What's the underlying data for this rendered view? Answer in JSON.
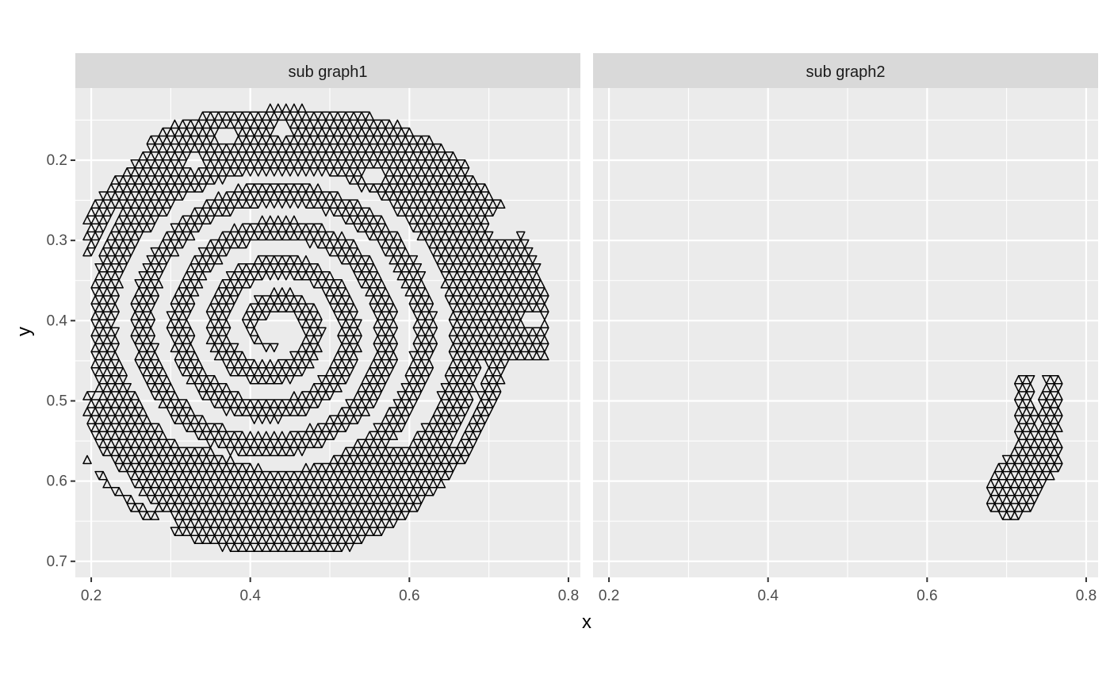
{
  "chart_data": {
    "type": "scatter",
    "geometry": "triangulated mesh (hexagonal lattice of triangles), facetted",
    "xlabel": "x",
    "ylabel": "y",
    "xlim": [
      0.18,
      0.815
    ],
    "ylim": [
      0.72,
      0.11
    ],
    "y_reversed": true,
    "x_ticks": [
      0.2,
      0.4,
      0.6,
      0.8
    ],
    "x_tick_labels": [
      "0.2",
      "0.4",
      "0.6",
      "0.8"
    ],
    "y_ticks": [
      0.2,
      0.3,
      0.4,
      0.5,
      0.6,
      0.7
    ],
    "y_tick_labels": [
      "0.2",
      "0.3",
      "0.4",
      "0.5",
      "0.6",
      "0.7"
    ],
    "grid": true,
    "panel_background": "#ebebeb",
    "strip_background": "#d9d9d9",
    "grid_color": "#ffffff",
    "mesh_color": "#000000",
    "mesh_spacing": 0.01,
    "facets": [
      {
        "label": "sub graph1",
        "region": "spiral",
        "spiral": {
          "center": [
            0.43,
            0.41
          ],
          "growth_per_turn": 0.045,
          "band_half_width": 0.012,
          "min_radius": 0.02,
          "max_radius": 0.28,
          "x_scale": 1.05
        },
        "outer_ring": {
          "center": [
            0.445,
            0.41
          ],
          "rx": [
            0.22,
            0.33
          ],
          "ry": [
            0.2,
            0.27
          ]
        },
        "holes": [
          {
            "x": 0.245,
            "y": 0.44,
            "r": 0.015
          },
          {
            "x": 0.33,
            "y": 0.205,
            "r": 0.012
          },
          {
            "x": 0.72,
            "y": 0.28,
            "r": 0.022
          },
          {
            "x": 0.555,
            "y": 0.22,
            "r": 0.012
          },
          {
            "x": 0.755,
            "y": 0.4,
            "r": 0.012
          },
          {
            "x": 0.295,
            "y": 0.645,
            "r": 0.01
          },
          {
            "x": 0.37,
            "y": 0.17,
            "r": 0.012
          },
          {
            "x": 0.44,
            "y": 0.165,
            "r": 0.012
          }
        ]
      },
      {
        "label": "sub graph2",
        "region": "y-shape",
        "segments": [
          {
            "from": [
              0.722,
              0.48
            ],
            "to": [
              0.724,
              0.55
            ],
            "half_width": 0.012
          },
          {
            "from": [
              0.758,
              0.48
            ],
            "to": [
              0.752,
              0.55
            ],
            "half_width": 0.012
          },
          {
            "from": [
              0.74,
              0.565
            ],
            "to": [
              0.705,
              0.615
            ],
            "half_width": 0.03
          }
        ]
      }
    ]
  }
}
